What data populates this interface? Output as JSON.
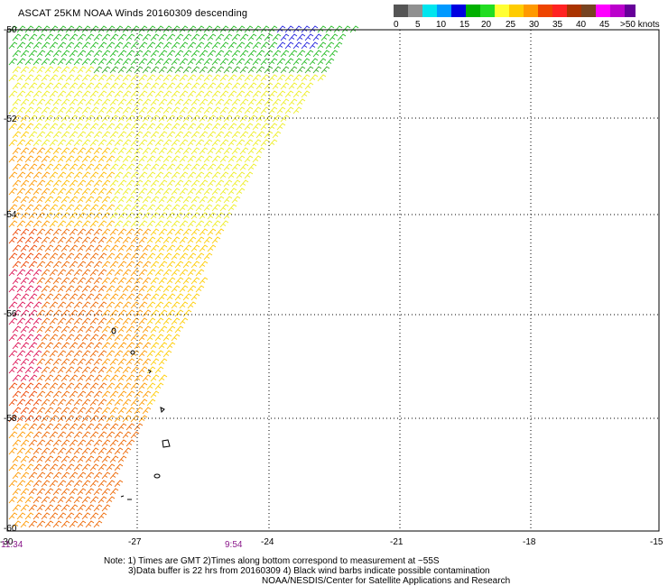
{
  "title": "ASCAT 25KM NOAA Winds 20160309 descending",
  "legend": {
    "colors": [
      "#555555",
      "#909090",
      "#00E5EE",
      "#0099FF",
      "#0000E0",
      "#00B000",
      "#22DD22",
      "#FFFF33",
      "#FFCC00",
      "#FF9900",
      "#EE4400",
      "#FF2222",
      "#AA3300",
      "#774422",
      "#FF00FF",
      "#BB00CC",
      "#660099"
    ],
    "labels": [
      "0",
      "5",
      "10",
      "15",
      "20",
      "25",
      "30",
      "35",
      "40",
      "45",
      ">50 knots"
    ]
  },
  "axes": {
    "lon_ticks": [
      "-30",
      "-27",
      "-24",
      "-21",
      "-18",
      "-15"
    ],
    "lat_ticks": [
      "-50",
      "-52",
      "-54",
      "-56",
      "-58",
      "-60"
    ]
  },
  "times": [
    "11:34",
    "9:54"
  ],
  "notes": [
    "Note: 1) Times are GMT 2)Times along bottom correspond to measurement at ~55S",
    "3)Data buffer is 22 hrs from 20160309 4) Black wind barbs indicate possible contamination",
    "NOAA/NESDIS/Center for Satellite Applications and Research"
  ],
  "map_data": {
    "type": "wind_barb_swath",
    "lon_range": [
      -30,
      -15
    ],
    "lat_range": [
      -60,
      -50
    ],
    "coverage": "swath along western edge, narrowing southward",
    "speed_regions_knots": [
      {
        "area": "northern edge near -50",
        "speed": "15-20",
        "color": "green"
      },
      {
        "area": "small patch near -50, -24",
        "speed": "10-15",
        "color": "blue"
      },
      {
        "area": "-50.5 to -52.5",
        "speed": "20-25",
        "color": "yellow"
      },
      {
        "area": "-53 to -56",
        "speed": "25-30",
        "color": "orange"
      },
      {
        "area": "far west -55 to -58",
        "speed": "30-35",
        "color": "red/magenta"
      },
      {
        "area": "south -58 to -60",
        "speed": "25-30",
        "color": "orange"
      }
    ],
    "islands": "South Sandwich Islands outlined near -26.5, -56 to -59"
  }
}
